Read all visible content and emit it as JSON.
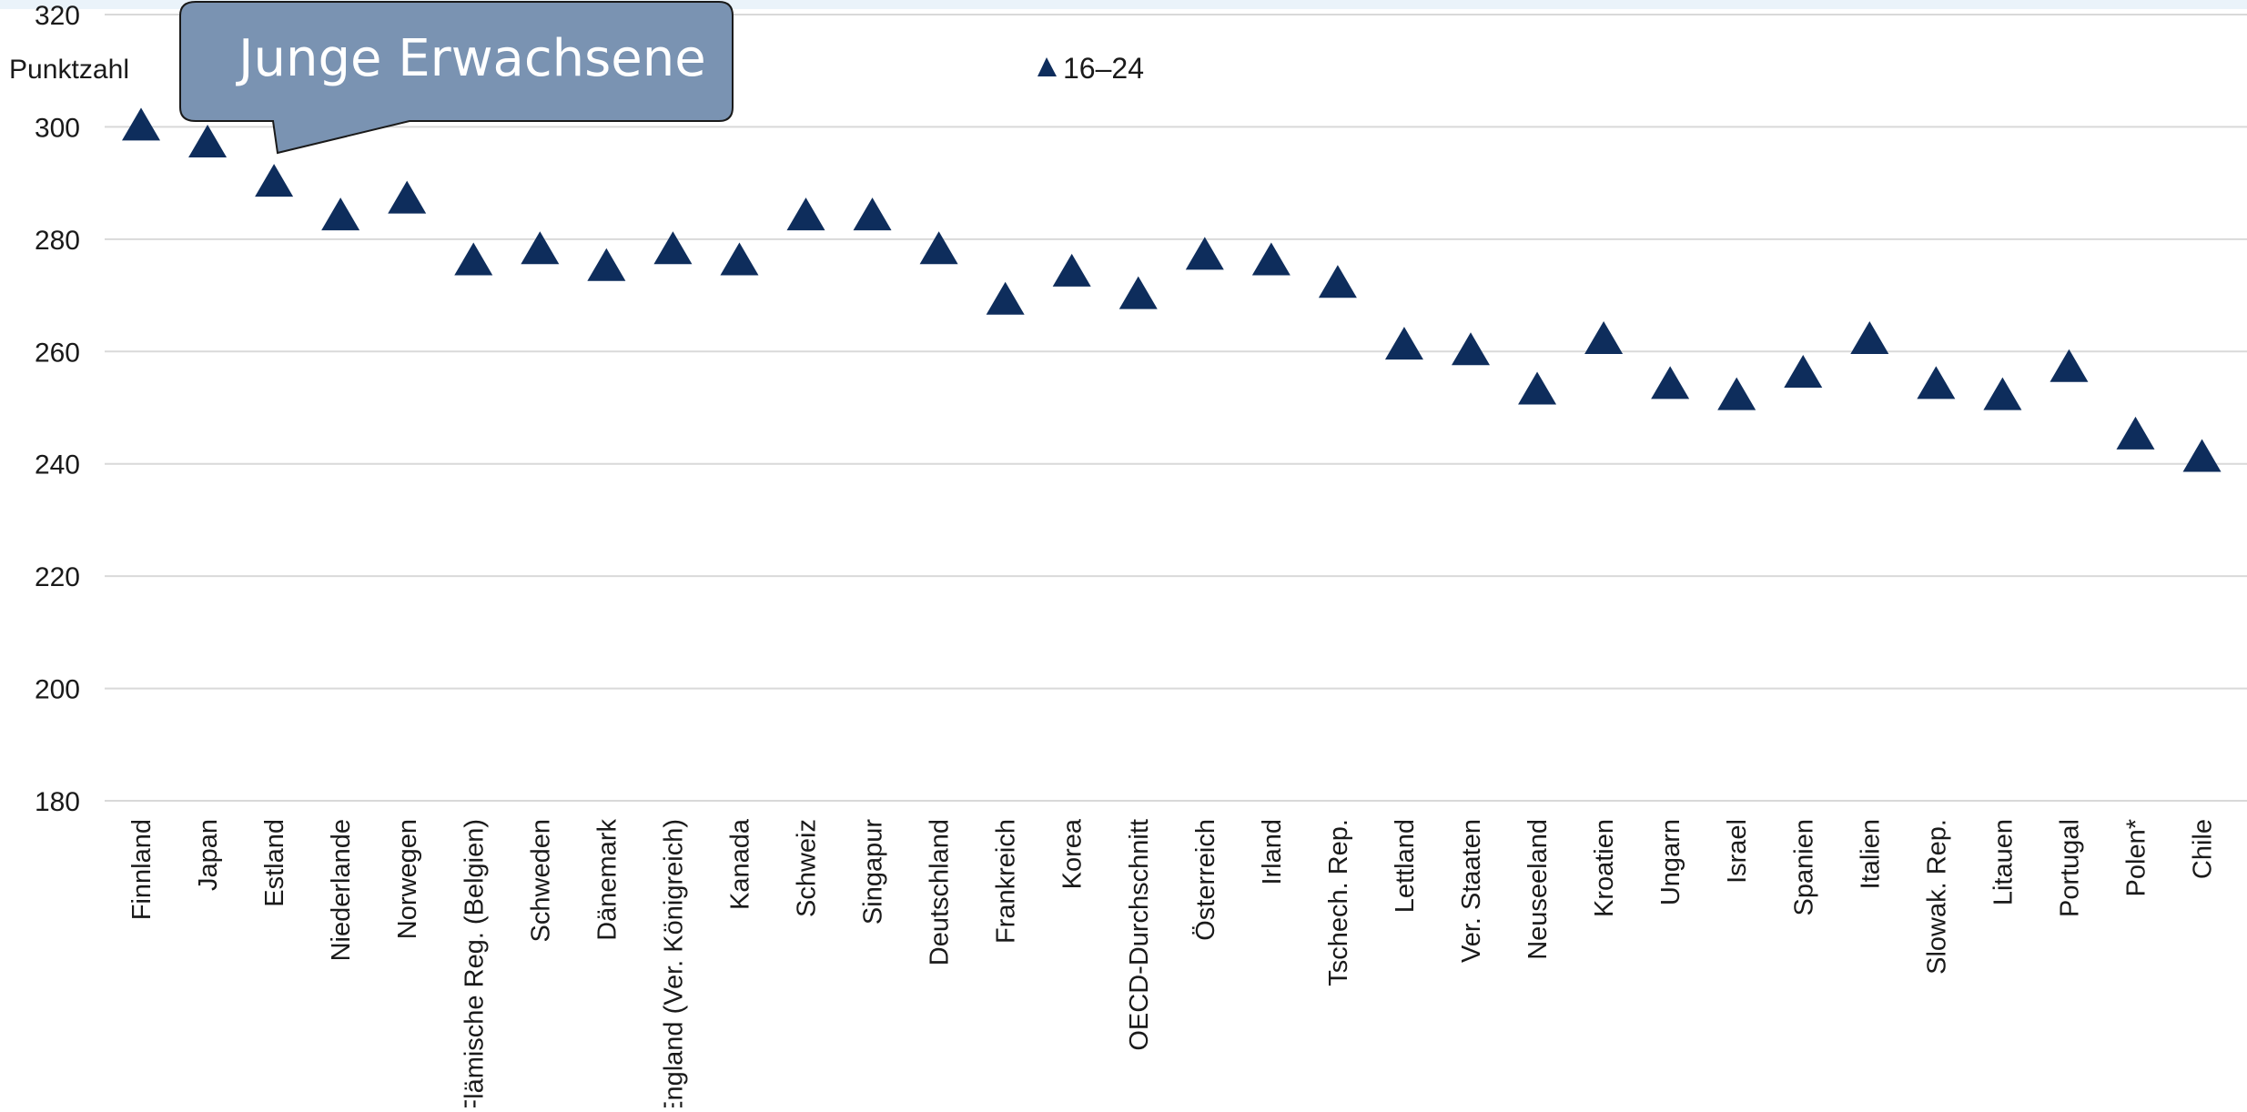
{
  "chart_data": {
    "type": "scatter",
    "title": "Junge Erwachsene",
    "ylabel": "Punktzahl",
    "xlabel": "",
    "ylim": [
      180,
      320
    ],
    "yticks": [
      180,
      200,
      220,
      240,
      260,
      280,
      300,
      320
    ],
    "grid": true,
    "legend_position": "top-center",
    "marker": "triangle",
    "colors": {
      "marker": "#0E2D5C",
      "callout_fill": "#7A93B2",
      "callout_stroke": "#1A1A1A",
      "grid": "#D9D9D9",
      "top_band": "#EAF3FA"
    },
    "categories": [
      "Finnland",
      "Japan",
      "Estland",
      "Niederlande",
      "Norwegen",
      "Flämische Reg. (Belgien)",
      "Schweden",
      "Dänemark",
      "England (Ver. Königreich)",
      "Kanada",
      "Schweiz",
      "Singapur",
      "Deutschland",
      "Frankreich",
      "Korea",
      "OECD-Durchschnitt",
      "Österreich",
      "Irland",
      "Tschech. Rep.",
      "Lettland",
      "Ver. Staaten",
      "Neuseeland",
      "Kroatien",
      "Ungarn",
      "Israel",
      "Spanien",
      "Italien",
      "Slowak. Rep.",
      "Litauen",
      "Portugal",
      "Polen*",
      "Chile"
    ],
    "series": [
      {
        "name": "16–24",
        "values": [
          300,
          297,
          290,
          284,
          287,
          276,
          278,
          275,
          278,
          276,
          284,
          284,
          278,
          269,
          274,
          270,
          277,
          276,
          272,
          261,
          260,
          253,
          262,
          254,
          252,
          256,
          262,
          254,
          252,
          257,
          245,
          241
        ]
      }
    ]
  }
}
